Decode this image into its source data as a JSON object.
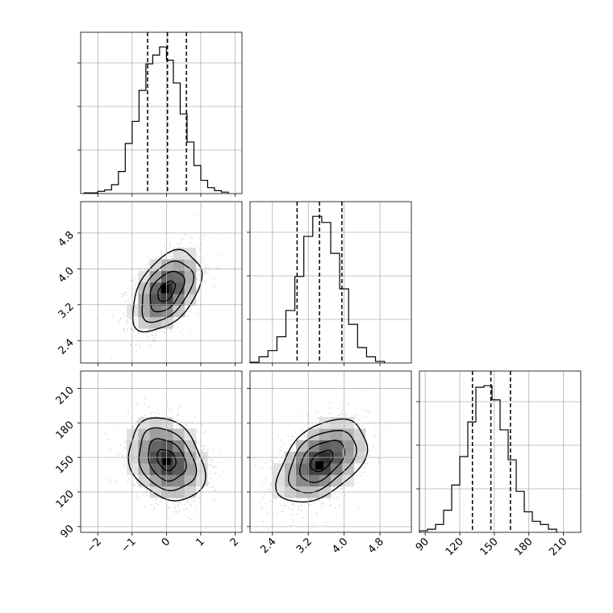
{
  "chart_data": {
    "type": "corner",
    "title": "",
    "parameters": [
      {
        "name": "",
        "range": [
          -2.5,
          2.2
        ],
        "ticks": [
          "−2",
          "−1",
          "0",
          "1",
          "2"
        ],
        "tick_values": [
          -2,
          -1,
          0,
          1,
          2
        ],
        "quantiles": [
          -0.55,
          0.03,
          0.58
        ],
        "hist": {
          "bin_edges": [
            -2.4,
            -2.2,
            -2.0,
            -1.8,
            -1.6,
            -1.4,
            -1.2,
            -1.0,
            -0.8,
            -0.6,
            -0.4,
            -0.2,
            0.0,
            0.2,
            0.4,
            0.6,
            0.8,
            1.0,
            1.2,
            1.4,
            1.6,
            1.8
          ],
          "counts": [
            1,
            1,
            3,
            5,
            12,
            30,
            68,
            98,
            140,
            176,
            188,
            199,
            181,
            150,
            108,
            70,
            38,
            18,
            8,
            4,
            2
          ]
        }
      },
      {
        "name": "",
        "range": [
          1.9,
          5.5
        ],
        "ticks": [
          "2.4",
          "3.2",
          "4.0",
          "4.8"
        ],
        "tick_values": [
          2.4,
          3.2,
          4.0,
          4.8
        ],
        "quantiles": [
          2.95,
          3.45,
          3.95
        ],
        "hist": {
          "bin_edges": [
            1.9,
            2.1,
            2.3,
            2.5,
            2.7,
            2.9,
            3.1,
            3.3,
            3.5,
            3.7,
            3.9,
            4.1,
            4.3,
            4.5,
            4.7,
            4.9
          ],
          "counts": [
            1,
            8,
            16,
            34,
            68,
            112,
            164,
            190,
            182,
            142,
            96,
            50,
            20,
            8,
            2
          ]
        }
      },
      {
        "name": "",
        "range": [
          85,
          225
        ],
        "ticks": [
          "90",
          "120",
          "150",
          "180",
          "210"
        ],
        "tick_values": [
          90,
          120,
          150,
          180,
          210
        ],
        "quantiles": [
          131,
          147,
          164
        ],
        "hist": {
          "bin_edges": [
            85,
            92,
            99,
            106,
            113,
            120,
            127,
            134,
            141,
            148,
            155,
            162,
            169,
            176,
            183,
            190,
            197,
            204
          ],
          "counts": [
            2,
            4,
            10,
            28,
            60,
            96,
            140,
            184,
            186,
            168,
            130,
            92,
            52,
            26,
            14,
            10,
            4
          ]
        }
      }
    ],
    "joint": [
      {
        "x": 0,
        "y": 1,
        "mean": [
          0.0,
          3.5
        ],
        "sd": [
          0.5,
          0.45
        ],
        "corr": 0.45,
        "peak": [
          -0.05,
          3.55
        ]
      },
      {
        "x": 0,
        "y": 2,
        "mean": [
          0.0,
          148
        ],
        "sd": [
          0.55,
          18
        ],
        "corr": -0.25,
        "peak": [
          0.0,
          147
        ]
      },
      {
        "x": 1,
        "y": 2,
        "mean": [
          3.5,
          147
        ],
        "sd": [
          0.5,
          18
        ],
        "corr": 0.45,
        "peak": [
          3.45,
          143
        ]
      }
    ],
    "contour_levels_sigma": [
      0.5,
      1.0,
      1.5,
      2.0
    ],
    "grid": true,
    "legend": "none"
  }
}
